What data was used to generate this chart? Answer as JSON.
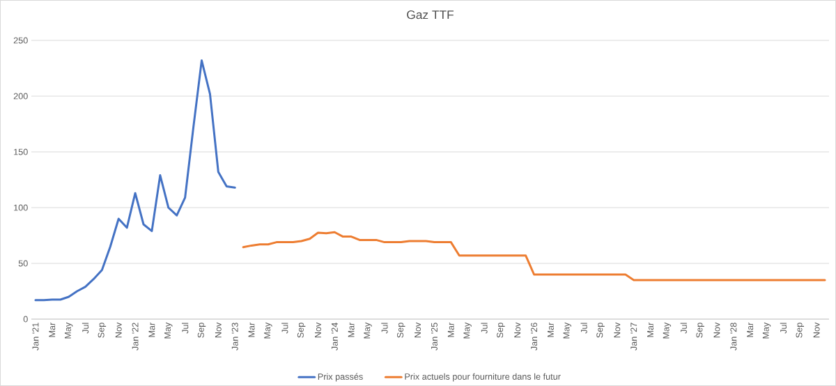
{
  "chart_data": {
    "type": "line",
    "title": "Gaz TTF",
    "categories": [
      "Jan '21",
      null,
      "Mar",
      null,
      "May",
      null,
      "Jul",
      null,
      "Sep",
      null,
      "Nov",
      null,
      "Jan '22",
      null,
      "Mar",
      null,
      "May",
      null,
      "Jul",
      null,
      "Sep",
      null,
      "Nov",
      null,
      "Jan '23",
      null,
      "Mar",
      null,
      "May",
      null,
      "Jul",
      null,
      "Sep",
      null,
      "Nov",
      null,
      "Jan '24",
      null,
      "Mar",
      null,
      "May",
      null,
      "Jul",
      null,
      "Sep",
      null,
      "Nov",
      null,
      "Jan '25",
      null,
      "Mar",
      null,
      "May",
      null,
      "Jul",
      null,
      "Sep",
      null,
      "Nov",
      null,
      "Jan '26",
      null,
      "Mar",
      null,
      "May",
      null,
      "Jul",
      null,
      "Sep",
      null,
      "Nov",
      null,
      "Jan '27",
      null,
      "Mar",
      null,
      "May",
      null,
      "Jul",
      null,
      "Sep",
      null,
      "Nov",
      null,
      "Jan '28",
      null,
      "Mar",
      null,
      "May",
      null,
      "Jul",
      null,
      "Sep",
      null,
      "Nov",
      null
    ],
    "series": [
      {
        "name": "Prix passés",
        "color": "#4472c4",
        "values": [
          17,
          17,
          17.5,
          17.5,
          20,
          25,
          29,
          36,
          44,
          65,
          90,
          82,
          113,
          85,
          79,
          129,
          100,
          93,
          109,
          172,
          232,
          202,
          132,
          119,
          118,
          null,
          null,
          null,
          null,
          null,
          null,
          null,
          null,
          null,
          null,
          null,
          null,
          null,
          null,
          null,
          null,
          null,
          null,
          null,
          null,
          null,
          null,
          null,
          null,
          null,
          null,
          null,
          null,
          null,
          null,
          null,
          null,
          null,
          null,
          null,
          null,
          null,
          null,
          null,
          null,
          null,
          null,
          null,
          null,
          null,
          null,
          null,
          null,
          null,
          null,
          null,
          null,
          null,
          null,
          null,
          null,
          null,
          null,
          null,
          null,
          null,
          null,
          null,
          null,
          null,
          null,
          null,
          null,
          null,
          null,
          null
        ]
      },
      {
        "name": "Prix actuels pour fourniture dans le futur",
        "color": "#ed7d31",
        "values": [
          null,
          null,
          null,
          null,
          null,
          null,
          null,
          null,
          null,
          null,
          null,
          null,
          null,
          null,
          null,
          null,
          null,
          null,
          null,
          null,
          null,
          null,
          null,
          null,
          null,
          64.5,
          66,
          67,
          67,
          69,
          69,
          69,
          70,
          72,
          77.5,
          77,
          78,
          74,
          74,
          71,
          71,
          71,
          69,
          69,
          69,
          70,
          70,
          70,
          69,
          69,
          69,
          57,
          57,
          57,
          57,
          57,
          57,
          57,
          57,
          57,
          40,
          40,
          40,
          40,
          40,
          40,
          40,
          40,
          40,
          40,
          40,
          40,
          35,
          35,
          35,
          35,
          35,
          35,
          35,
          35,
          35,
          35,
          35,
          35,
          35,
          35,
          35,
          35,
          35,
          35,
          35,
          35,
          35,
          35,
          35,
          35
        ]
      }
    ],
    "ylim": [
      0,
      250
    ],
    "yticks": [
      0,
      50,
      100,
      150,
      200,
      250
    ],
    "grid": "y",
    "legend": "bottom",
    "marker": "none",
    "line_style": "solid"
  }
}
